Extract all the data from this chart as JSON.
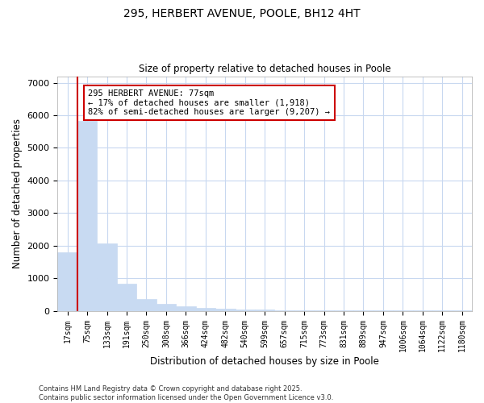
{
  "title1": "295, HERBERT AVENUE, POOLE, BH12 4HT",
  "title2": "Size of property relative to detached houses in Poole",
  "xlabel": "Distribution of detached houses by size in Poole",
  "ylabel": "Number of detached properties",
  "bar_labels": [
    "17sqm",
    "75sqm",
    "133sqm",
    "191sqm",
    "250sqm",
    "308sqm",
    "366sqm",
    "424sqm",
    "482sqm",
    "540sqm",
    "599sqm",
    "657sqm",
    "715sqm",
    "773sqm",
    "831sqm",
    "889sqm",
    "947sqm",
    "1006sqm",
    "1064sqm",
    "1122sqm",
    "1180sqm"
  ],
  "bar_values": [
    1800,
    5820,
    2060,
    830,
    370,
    220,
    130,
    90,
    55,
    50,
    30,
    20,
    15,
    10,
    10,
    8,
    7,
    6,
    5,
    5,
    5
  ],
  "bar_color": "#c8daf2",
  "bar_edge_color": "#c8daf2",
  "background_color": "#ffffff",
  "grid_color": "#c8d8f0",
  "annotation_text": "295 HERBERT AVENUE: 77sqm\n← 17% of detached houses are smaller (1,918)\n82% of semi-detached houses are larger (9,207) →",
  "annotation_box_color": "#ffffff",
  "annotation_box_edge": "#cc0000",
  "vline_color": "#cc0000",
  "ylim": [
    0,
    7200
  ],
  "yticks": [
    0,
    1000,
    2000,
    3000,
    4000,
    5000,
    6000,
    7000
  ],
  "footer1": "Contains HM Land Registry data © Crown copyright and database right 2025.",
  "footer2": "Contains public sector information licensed under the Open Government Licence v3.0."
}
